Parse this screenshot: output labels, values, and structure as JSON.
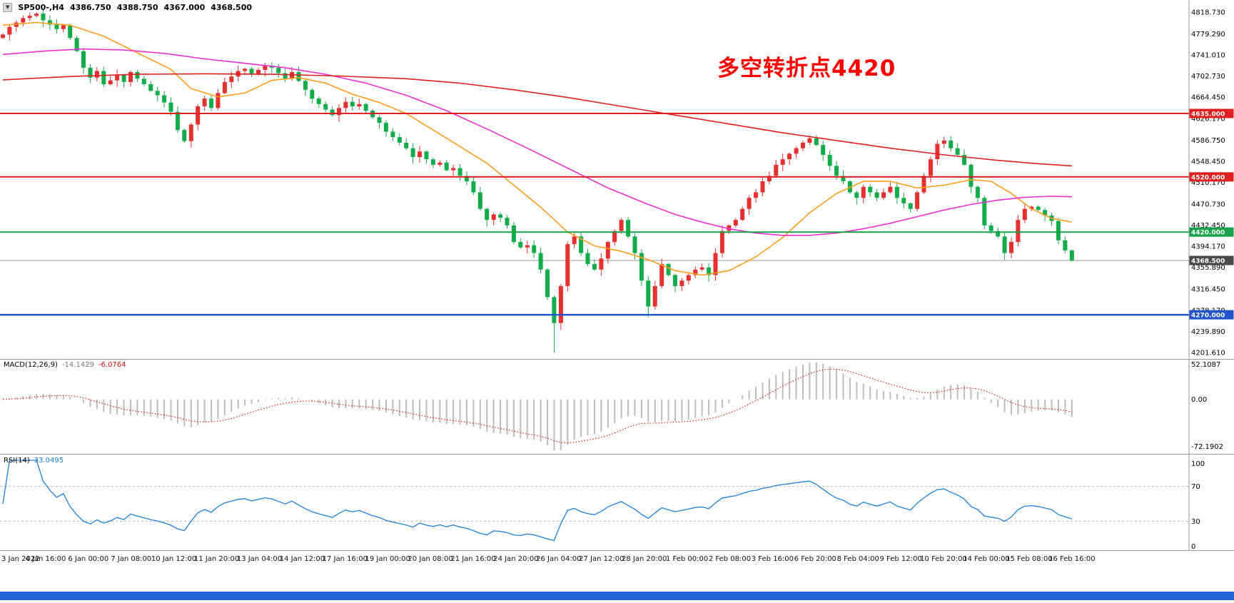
{
  "header": {
    "collapse_icon": "▼",
    "symbol": "SP500-,H4",
    "open": "4386.750",
    "high": "4388.750",
    "low": "4367.000",
    "close": "4368.500"
  },
  "annotation": {
    "text": "多空转折点4420",
    "color": "#ff0000"
  },
  "macd_panel": {
    "label": "MACD(12,26,9)",
    "value_main": "-14.1429",
    "value_signal": "-6.0764",
    "scale": [
      "52.1087",
      "0.00",
      "-72.1902"
    ]
  },
  "rsi_panel": {
    "label": "RSI(14)",
    "value": "33.0495",
    "scale": [
      "100",
      "70",
      "30",
      "0"
    ],
    "levels": [
      70,
      30
    ]
  },
  "price_axis": {
    "labels": [
      "4818.730",
      "4779.290",
      "4741.010",
      "4702.730",
      "4664.450",
      "4626.170",
      "4586.750",
      "4548.450",
      "4510.170",
      "4470.730",
      "4432.450",
      "4394.170",
      "4355.890",
      "4316.450",
      "4278.170",
      "4239.890",
      "4201.610"
    ]
  },
  "hlines": [
    {
      "price": 4635.0,
      "label": "4635.000",
      "color": "#e02020",
      "width": 2
    },
    {
      "price": 4520.0,
      "label": "4520.000",
      "color": "#e02020",
      "width": 2
    },
    {
      "price": 4420.0,
      "label": "4420.000",
      "color": "#18a24a",
      "width": 2
    },
    {
      "price": 4270.0,
      "label": "4270.000",
      "color": "#2255cc",
      "width": 2.5
    }
  ],
  "current_price": {
    "price": 4368.5,
    "label": "4368.500",
    "line_color": "#9a9a9a",
    "tag_color": "#4a4a4a"
  },
  "x_axis": {
    "labels": [
      "3 Jan 2022",
      "4 Jan 16:00",
      "6 Jan 00:00",
      "7 Jan 08:00",
      "10 Jan 12:00",
      "11 Jan 20:00",
      "13 Jan 04:00",
      "14 Jan 12:00",
      "17 Jan 16:00",
      "19 Jan 00:00",
      "20 Jan 08:00",
      "21 Jan 16:00",
      "24 Jan 20:00",
      "26 Jan 04:00",
      "27 Jan 12:00",
      "28 Jan 20:00",
      "1 Feb 00:00",
      "2 Feb 08:00",
      "3 Feb 16:00",
      "6 Feb 20:00",
      "8 Feb 04:00",
      "9 Feb 12:00",
      "10 Feb 20:00",
      "14 Feb 00:00",
      "15 Feb 08:00",
      "16 Feb 16:00"
    ]
  },
  "chart_data": {
    "type": "candlestick",
    "symbol": "SP500-",
    "timeframe": "H4",
    "up_color": "#e53030",
    "down_color": "#12ad4a",
    "first_open": 4772,
    "closes": [
      4778,
      4792,
      4800,
      4808,
      4812,
      4816,
      4804,
      4796,
      4788,
      4795,
      4772,
      4748,
      4718,
      4700,
      4712,
      4688,
      4695,
      4705,
      4692,
      4710,
      4698,
      4688,
      4676,
      4668,
      4655,
      4638,
      4605,
      4585,
      4615,
      4648,
      4662,
      4645,
      4672,
      4692,
      4702,
      4712,
      4716,
      4706,
      4714,
      4722,
      4718,
      4708,
      4698,
      4710,
      4694,
      4678,
      4662,
      4652,
      4642,
      4632,
      4645,
      4656,
      4648,
      4652,
      4640,
      4628,
      4618,
      4602,
      4592,
      4582,
      4572,
      4556,
      4566,
      4552,
      4542,
      4546,
      4532,
      4536,
      4522,
      4512,
      4492,
      4462,
      4442,
      4452,
      4446,
      4432,
      4402,
      4392,
      4396,
      4382,
      4352,
      4302,
      4255,
      4322,
      4398,
      4412,
      4382,
      4362,
      4352,
      4372,
      4402,
      4422,
      4442,
      4412,
      4382,
      4332,
      4285,
      4322,
      4362,
      4342,
      4322,
      4332,
      4342,
      4352,
      4356,
      4342,
      4382,
      4422,
      4432,
      4442,
      4462,
      4482,
      4492,
      4512,
      4522,
      4542,
      4552,
      4562,
      4572,
      4582,
      4590,
      4578,
      4560,
      4540,
      4522,
      4512,
      4492,
      4482,
      4502,
      4492,
      4482,
      4492,
      4502,
      4482,
      4472,
      4462,
      4492,
      4522,
      4552,
      4580,
      4586,
      4572,
      4560,
      4542,
      4502,
      4482,
      4432,
      4422,
      4412,
      4382,
      4402,
      4442,
      4462,
      4466,
      4460,
      4450,
      4440,
      4405,
      4386.75,
      4368.5
    ],
    "wick_overrides": {
      "5": {
        "h": 4818.73
      },
      "82": {
        "l": 4201.61
      },
      "96": {
        "l": 4266
      },
      "159": {
        "h": 4388.75,
        "l": 4367.0
      }
    },
    "price_extremes": {
      "high": 4818.73,
      "low": 4201.61
    },
    "moving_averages": [
      {
        "name": "ma-fast",
        "color": "#ff9d1c",
        "points": [
          [
            0,
            4795
          ],
          [
            5,
            4800
          ],
          [
            10,
            4795
          ],
          [
            15,
            4775
          ],
          [
            20,
            4745
          ],
          [
            25,
            4715
          ],
          [
            28,
            4680
          ],
          [
            32,
            4665
          ],
          [
            36,
            4672
          ],
          [
            40,
            4695
          ],
          [
            44,
            4700
          ],
          [
            48,
            4690
          ],
          [
            52,
            4670
          ],
          [
            56,
            4655
          ],
          [
            60,
            4635
          ],
          [
            64,
            4605
          ],
          [
            68,
            4575
          ],
          [
            72,
            4545
          ],
          [
            76,
            4505
          ],
          [
            80,
            4465
          ],
          [
            84,
            4420
          ],
          [
            88,
            4395
          ],
          [
            92,
            4385
          ],
          [
            96,
            4370
          ],
          [
            100,
            4350
          ],
          [
            104,
            4342
          ],
          [
            108,
            4350
          ],
          [
            112,
            4375
          ],
          [
            116,
            4410
          ],
          [
            120,
            4455
          ],
          [
            124,
            4490
          ],
          [
            128,
            4512
          ],
          [
            132,
            4512
          ],
          [
            136,
            4500
          ],
          [
            140,
            4505
          ],
          [
            144,
            4515
          ],
          [
            147,
            4512
          ],
          [
            150,
            4490
          ],
          [
            153,
            4462
          ],
          [
            156,
            4445
          ],
          [
            159,
            4438
          ]
        ]
      },
      {
        "name": "ma-mid",
        "color": "#ee2fd2",
        "points": [
          [
            0,
            4742
          ],
          [
            6,
            4748
          ],
          [
            12,
            4752
          ],
          [
            18,
            4750
          ],
          [
            24,
            4744
          ],
          [
            30,
            4734
          ],
          [
            36,
            4726
          ],
          [
            42,
            4718
          ],
          [
            48,
            4706
          ],
          [
            54,
            4690
          ],
          [
            60,
            4668
          ],
          [
            66,
            4640
          ],
          [
            72,
            4607
          ],
          [
            78,
            4572
          ],
          [
            84,
            4536
          ],
          [
            90,
            4500
          ],
          [
            96,
            4470
          ],
          [
            100,
            4452
          ],
          [
            104,
            4438
          ],
          [
            108,
            4426
          ],
          [
            112,
            4418
          ],
          [
            116,
            4414
          ],
          [
            120,
            4414
          ],
          [
            124,
            4418
          ],
          [
            128,
            4426
          ],
          [
            132,
            4436
          ],
          [
            136,
            4448
          ],
          [
            140,
            4460
          ],
          [
            144,
            4470
          ],
          [
            148,
            4478
          ],
          [
            152,
            4483
          ],
          [
            156,
            4485
          ],
          [
            159,
            4484
          ]
        ]
      },
      {
        "name": "ma-slow",
        "color": "#e02020",
        "points": [
          [
            0,
            4696
          ],
          [
            10,
            4702
          ],
          [
            20,
            4706
          ],
          [
            30,
            4707
          ],
          [
            40,
            4706
          ],
          [
            50,
            4703
          ],
          [
            60,
            4698
          ],
          [
            68,
            4690
          ],
          [
            76,
            4678
          ],
          [
            84,
            4664
          ],
          [
            92,
            4648
          ],
          [
            100,
            4632
          ],
          [
            108,
            4616
          ],
          [
            116,
            4600
          ],
          [
            124,
            4586
          ],
          [
            132,
            4572
          ],
          [
            140,
            4560
          ],
          [
            148,
            4550
          ],
          [
            154,
            4544
          ],
          [
            159,
            4540
          ]
        ]
      }
    ],
    "macd": {
      "fast": 12,
      "slow": 26,
      "signal": 9,
      "hist_color": "#bdbdbd",
      "signal_color": "#e02020",
      "max": 52.1087,
      "min": -72.1902
    },
    "rsi": {
      "period": 14,
      "color": "#1e7fe0"
    }
  }
}
